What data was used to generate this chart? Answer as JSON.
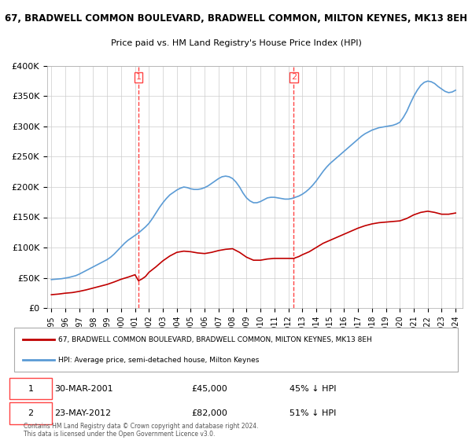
{
  "title": "67, BRADWELL COMMON BOULEVARD, BRADWELL COMMON, MILTON KEYNES, MK13 8EH",
  "subtitle": "Price paid vs. HM Land Registry's House Price Index (HPI)",
  "ylim": [
    0,
    400000
  ],
  "yticks": [
    0,
    50000,
    100000,
    150000,
    200000,
    250000,
    300000,
    350000,
    400000
  ],
  "ytick_labels": [
    "£0",
    "£50K",
    "£100K",
    "£150K",
    "£200K",
    "£250K",
    "£300K",
    "£350K",
    "£400K"
  ],
  "hpi_color": "#5b9bd5",
  "price_color": "#c00000",
  "vline_color": "#ff4444",
  "background_color": "#ffffff",
  "grid_color": "#cccccc",
  "sale1_date": "30-MAR-2001",
  "sale1_price": 45000,
  "sale1_pct": "45% ↓ HPI",
  "sale2_date": "23-MAY-2012",
  "sale2_price": 82000,
  "sale2_pct": "51% ↓ HPI",
  "legend_label_red": "67, BRADWELL COMMON BOULEVARD, BRADWELL COMMON, MILTON KEYNES, MK13 8EH",
  "legend_label_blue": "HPI: Average price, semi-detached house, Milton Keynes",
  "footnote": "Contains HM Land Registry data © Crown copyright and database right 2024.\nThis data is licensed under the Open Government Licence v3.0.",
  "hpi_years": [
    1995.0,
    1995.25,
    1995.5,
    1995.75,
    1996.0,
    1996.25,
    1996.5,
    1996.75,
    1997.0,
    1997.25,
    1997.5,
    1997.75,
    1998.0,
    1998.25,
    1998.5,
    1998.75,
    1999.0,
    1999.25,
    1999.5,
    1999.75,
    2000.0,
    2000.25,
    2000.5,
    2000.75,
    2001.0,
    2001.25,
    2001.5,
    2001.75,
    2002.0,
    2002.25,
    2002.5,
    2002.75,
    2003.0,
    2003.25,
    2003.5,
    2003.75,
    2004.0,
    2004.25,
    2004.5,
    2004.75,
    2005.0,
    2005.25,
    2005.5,
    2005.75,
    2006.0,
    2006.25,
    2006.5,
    2006.75,
    2007.0,
    2007.25,
    2007.5,
    2007.75,
    2008.0,
    2008.25,
    2008.5,
    2008.75,
    2009.0,
    2009.25,
    2009.5,
    2009.75,
    2010.0,
    2010.25,
    2010.5,
    2010.75,
    2011.0,
    2011.25,
    2011.5,
    2011.75,
    2012.0,
    2012.25,
    2012.5,
    2012.75,
    2013.0,
    2013.25,
    2013.5,
    2013.75,
    2014.0,
    2014.25,
    2014.5,
    2014.75,
    2015.0,
    2015.25,
    2015.5,
    2015.75,
    2016.0,
    2016.25,
    2016.5,
    2016.75,
    2017.0,
    2017.25,
    2017.5,
    2017.75,
    2018.0,
    2018.25,
    2018.5,
    2018.75,
    2019.0,
    2019.25,
    2019.5,
    2019.75,
    2020.0,
    2020.25,
    2020.5,
    2020.75,
    2021.0,
    2021.25,
    2021.5,
    2021.75,
    2022.0,
    2022.25,
    2022.5,
    2022.75,
    2023.0,
    2023.25,
    2023.5,
    2023.75,
    2024.0
  ],
  "hpi_values": [
    47000,
    47500,
    48000,
    48500,
    49500,
    50500,
    52000,
    53500,
    56000,
    59000,
    62000,
    65000,
    68000,
    71000,
    74000,
    77000,
    80000,
    84000,
    89000,
    95000,
    101000,
    107000,
    112000,
    116000,
    120000,
    124000,
    129000,
    134000,
    140000,
    148000,
    157000,
    166000,
    174000,
    181000,
    187000,
    191000,
    195000,
    198000,
    200000,
    199000,
    197000,
    196000,
    196000,
    197000,
    199000,
    202000,
    206000,
    210000,
    214000,
    217000,
    218000,
    217000,
    214000,
    208000,
    200000,
    190000,
    182000,
    177000,
    174000,
    174000,
    176000,
    179000,
    182000,
    183000,
    183000,
    182000,
    181000,
    180000,
    180000,
    181000,
    183000,
    185000,
    188000,
    192000,
    197000,
    203000,
    210000,
    218000,
    226000,
    233000,
    239000,
    244000,
    249000,
    254000,
    259000,
    264000,
    269000,
    274000,
    279000,
    284000,
    288000,
    291000,
    294000,
    296000,
    298000,
    299000,
    300000,
    301000,
    302000,
    304000,
    307000,
    315000,
    325000,
    338000,
    350000,
    360000,
    368000,
    373000,
    375000,
    374000,
    371000,
    366000,
    362000,
    358000,
    356000,
    357000,
    360000
  ],
  "price_years": [
    1995.0,
    1995.5,
    1996.0,
    1996.5,
    1997.0,
    1997.5,
    1998.0,
    1998.5,
    1999.0,
    1999.5,
    2000.0,
    2000.5,
    2001.0,
    2001.25,
    2001.5,
    2001.75,
    2002.0,
    2002.5,
    2003.0,
    2003.5,
    2004.0,
    2004.5,
    2005.0,
    2005.5,
    2006.0,
    2006.5,
    2007.0,
    2007.5,
    2008.0,
    2008.5,
    2009.0,
    2009.5,
    2010.0,
    2010.5,
    2011.0,
    2011.5,
    2012.0,
    2012.416,
    2012.5,
    2012.75,
    2013.0,
    2013.5,
    2014.0,
    2014.5,
    2015.0,
    2015.5,
    2016.0,
    2016.5,
    2017.0,
    2017.5,
    2018.0,
    2018.5,
    2019.0,
    2019.5,
    2020.0,
    2020.5,
    2021.0,
    2021.5,
    2022.0,
    2022.5,
    2023.0,
    2023.5,
    2024.0
  ],
  "price_values": [
    22000,
    23000,
    24500,
    25500,
    27500,
    30000,
    33000,
    36000,
    39000,
    43000,
    47500,
    51000,
    55000,
    45000,
    48000,
    52000,
    59000,
    68000,
    78000,
    86000,
    92000,
    94000,
    93000,
    91000,
    90000,
    92000,
    95000,
    97000,
    98000,
    92000,
    84000,
    79000,
    79000,
    81000,
    82000,
    82000,
    82000,
    82000,
    83000,
    85000,
    88000,
    93000,
    100000,
    107000,
    112000,
    117000,
    122000,
    127000,
    132000,
    136000,
    139000,
    141000,
    142000,
    143000,
    144000,
    148000,
    154000,
    158000,
    160000,
    158000,
    155000,
    155000,
    157000
  ],
  "sale1_x": 2001.247,
  "sale2_x": 2012.388,
  "xtick_years": [
    1995,
    1996,
    1997,
    1998,
    1999,
    2000,
    2001,
    2002,
    2003,
    2004,
    2005,
    2006,
    2007,
    2008,
    2009,
    2010,
    2011,
    2012,
    2013,
    2014,
    2015,
    2016,
    2017,
    2018,
    2019,
    2020,
    2021,
    2022,
    2023,
    2024
  ]
}
